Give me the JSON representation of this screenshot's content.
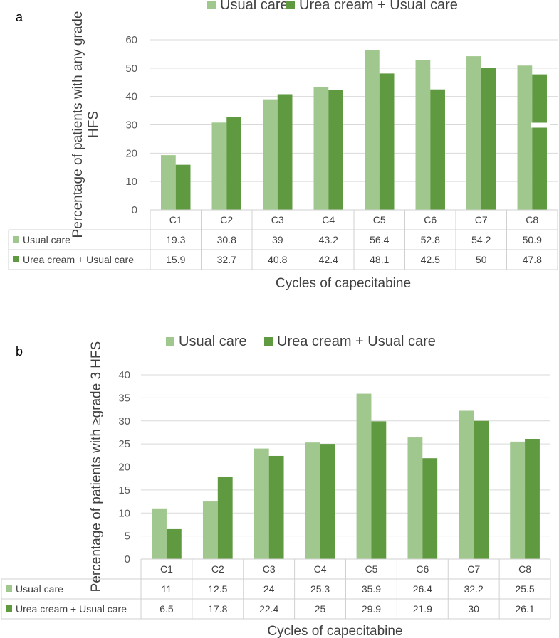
{
  "chart_data": [
    {
      "panel": "a",
      "type": "bar",
      "categories": [
        "C1",
        "C2",
        "C3",
        "C4",
        "C5",
        "C6",
        "C7",
        "C8"
      ],
      "series": [
        {
          "name": "Usual care",
          "color": "#a0c78d",
          "values": [
            19.3,
            30.8,
            39,
            43.2,
            56.4,
            52.8,
            54.2,
            50.9
          ]
        },
        {
          "name": "Urea cream + Usual care",
          "color": "#5f9a40",
          "values": [
            15.9,
            32.7,
            40.8,
            42.4,
            48.1,
            42.5,
            50,
            47.8
          ]
        }
      ],
      "table_values": [
        [
          "19.3",
          "30.8",
          "39",
          "43.2",
          "56.4",
          "52.8",
          "54.2",
          "50.9"
        ],
        [
          "15.9",
          "32.7",
          "40.8",
          "42.4",
          "48.1",
          "42.5",
          "50",
          "47.8"
        ]
      ],
      "ylabel": "Percentage of patients with any grade HFS",
      "xlabel": "Cycles of capecitabine",
      "ylim": [
        0,
        60
      ],
      "yticks": [
        0,
        10,
        20,
        30,
        40,
        50,
        60
      ],
      "legend": "top"
    },
    {
      "panel": "b",
      "type": "bar",
      "categories": [
        "C1",
        "C2",
        "C3",
        "C4",
        "C5",
        "C6",
        "C7",
        "C8"
      ],
      "series": [
        {
          "name": "Usual care",
          "color": "#a0c78d",
          "values": [
            11,
            12.5,
            24,
            25.3,
            35.9,
            26.4,
            32.2,
            25.5
          ]
        },
        {
          "name": "Urea cream + Usual care",
          "color": "#5f9a40",
          "values": [
            6.5,
            17.8,
            22.4,
            25,
            29.9,
            21.9,
            30,
            26.1
          ]
        }
      ],
      "table_values": [
        [
          "11",
          "12.5",
          "24",
          "25.3",
          "35.9",
          "26.4",
          "32.2",
          "25.5"
        ],
        [
          "6.5",
          "17.8",
          "22.4",
          "25",
          "29.9",
          "21.9",
          "30",
          "26.1"
        ]
      ],
      "ylabel": "Percentage of patients with ≥grade 3 HFS",
      "xlabel": "Cycles of capecitabine",
      "ylim": [
        0,
        40
      ],
      "yticks": [
        0,
        5,
        10,
        15,
        20,
        25,
        30,
        35,
        40
      ],
      "legend": "top"
    }
  ]
}
